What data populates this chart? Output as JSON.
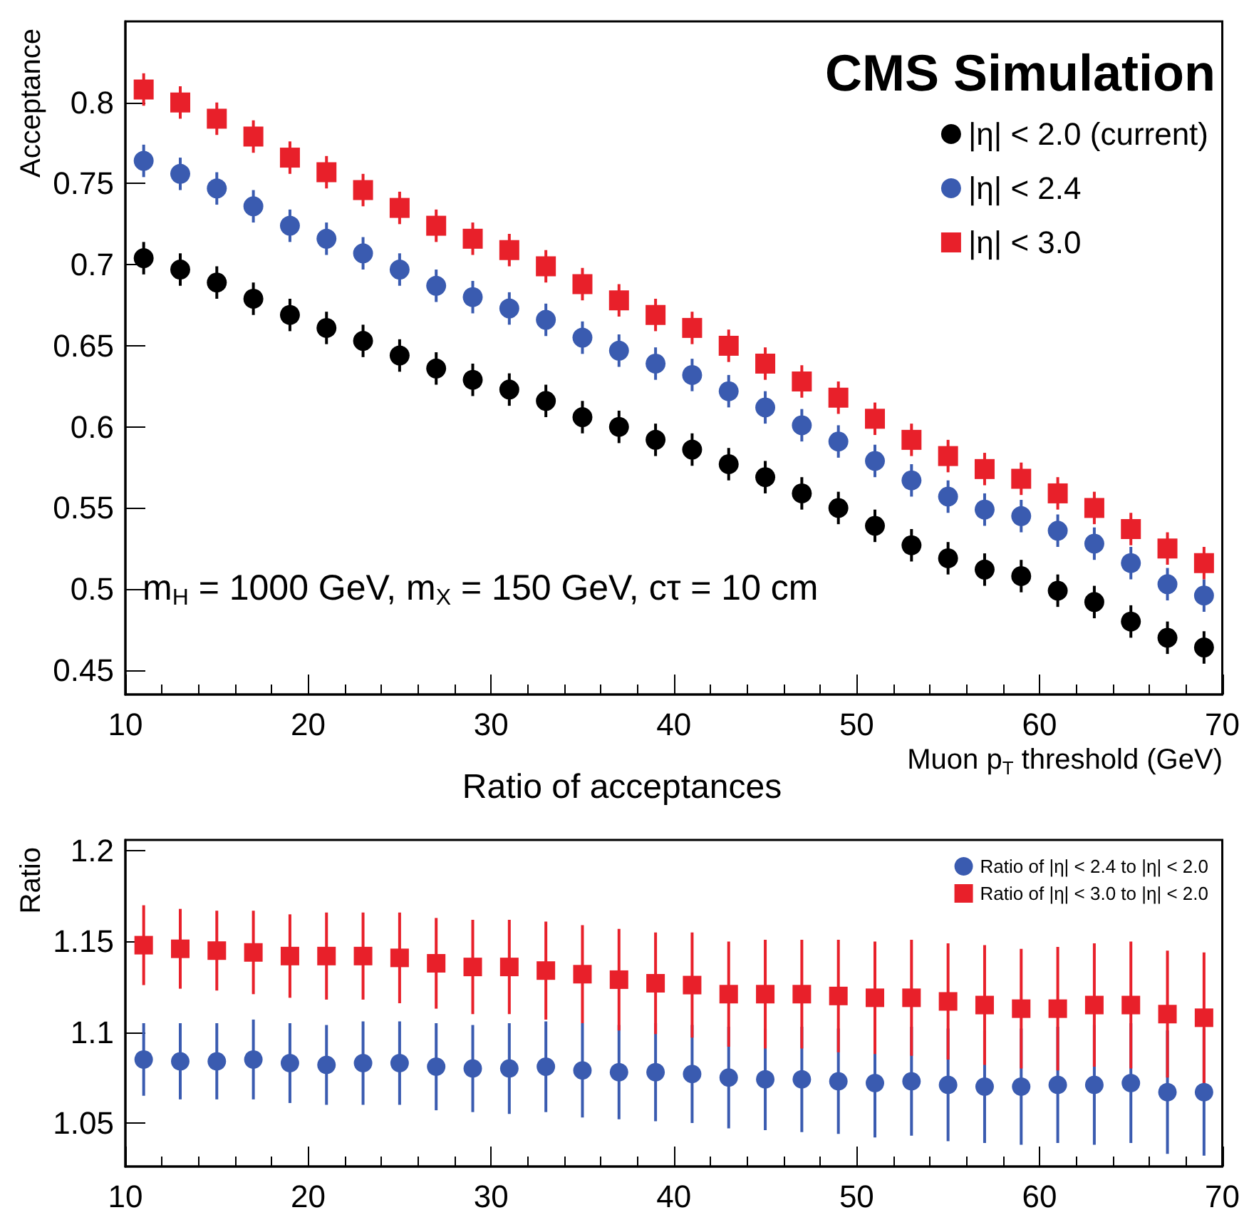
{
  "chart_data": [
    {
      "type": "scatter",
      "xlabel": "Muon p$_{T}$ threshold (GeV)",
      "ylabel": "Acceptance",
      "annotations": [
        "CMS Simulation",
        "m$_{H}$ = 1000 GeV, m$_{X}$ = 150 GeV, cτ = 10 cm"
      ],
      "x": [
        11,
        13,
        15,
        17,
        19,
        21,
        23,
        25,
        27,
        29,
        31,
        33,
        35,
        37,
        39,
        41,
        43,
        45,
        47,
        49,
        51,
        53,
        55,
        57,
        59,
        61,
        63,
        65,
        67,
        69
      ],
      "xlim": [
        10,
        70
      ],
      "xticks": [
        10,
        20,
        30,
        40,
        50,
        60,
        70
      ],
      "ylim": [
        0.435,
        0.85
      ],
      "yticks": [
        0.45,
        0.5,
        0.55,
        0.6,
        0.65,
        0.7,
        0.75,
        0.8
      ],
      "grid": false,
      "legend": "top right",
      "series": [
        {
          "name": "|η| < 2.0 (current)",
          "color": "#000000",
          "marker": "circle",
          "values": [
            0.704,
            0.697,
            0.689,
            0.679,
            0.669,
            0.661,
            0.653,
            0.644,
            0.636,
            0.629,
            0.623,
            0.616,
            0.606,
            0.6,
            0.592,
            0.586,
            0.577,
            0.569,
            0.559,
            0.55,
            0.539,
            0.527,
            0.519,
            0.512,
            0.508,
            0.499,
            0.492,
            0.48,
            0.47,
            0.464
          ],
          "errors": [
            0.01,
            0.01,
            0.01,
            0.01,
            0.01,
            0.01,
            0.01,
            0.01,
            0.01,
            0.01,
            0.01,
            0.01,
            0.01,
            0.01,
            0.01,
            0.01,
            0.01,
            0.01,
            0.01,
            0.01,
            0.01,
            0.01,
            0.01,
            0.01,
            0.01,
            0.01,
            0.01,
            0.01,
            0.01,
            0.01
          ]
        },
        {
          "name": "|η| < 2.4",
          "color": "#3a5bb0",
          "marker": "circle",
          "values": [
            0.764,
            0.756,
            0.747,
            0.736,
            0.724,
            0.716,
            0.707,
            0.697,
            0.687,
            0.68,
            0.673,
            0.666,
            0.655,
            0.647,
            0.639,
            0.632,
            0.622,
            0.612,
            0.601,
            0.591,
            0.579,
            0.567,
            0.557,
            0.549,
            0.545,
            0.536,
            0.528,
            0.516,
            0.503,
            0.496
          ],
          "errors": [
            0.01,
            0.01,
            0.01,
            0.01,
            0.01,
            0.01,
            0.01,
            0.01,
            0.01,
            0.01,
            0.01,
            0.01,
            0.01,
            0.01,
            0.01,
            0.01,
            0.01,
            0.01,
            0.01,
            0.01,
            0.01,
            0.01,
            0.01,
            0.01,
            0.01,
            0.01,
            0.01,
            0.01,
            0.01,
            0.01
          ]
        },
        {
          "name": "|η| < 3.0",
          "color": "#e8202a",
          "marker": "square",
          "values": [
            0.808,
            0.8,
            0.79,
            0.779,
            0.766,
            0.757,
            0.746,
            0.735,
            0.724,
            0.716,
            0.709,
            0.699,
            0.688,
            0.678,
            0.669,
            0.661,
            0.65,
            0.639,
            0.628,
            0.618,
            0.605,
            0.592,
            0.582,
            0.574,
            0.568,
            0.559,
            0.55,
            0.537,
            0.525,
            0.516
          ],
          "errors": [
            0.01,
            0.01,
            0.01,
            0.01,
            0.01,
            0.01,
            0.01,
            0.01,
            0.01,
            0.01,
            0.01,
            0.01,
            0.01,
            0.01,
            0.01,
            0.01,
            0.01,
            0.01,
            0.01,
            0.01,
            0.01,
            0.01,
            0.01,
            0.01,
            0.01,
            0.01,
            0.01,
            0.01,
            0.01,
            0.01
          ]
        }
      ]
    },
    {
      "type": "scatter",
      "title": "Ratio of acceptances",
      "ylabel": "Ratio",
      "x": [
        11,
        13,
        15,
        17,
        19,
        21,
        23,
        25,
        27,
        29,
        31,
        33,
        35,
        37,
        39,
        41,
        43,
        45,
        47,
        49,
        51,
        53,
        55,
        57,
        59,
        61,
        63,
        65,
        67,
        69
      ],
      "xlim": [
        10,
        70
      ],
      "xticks": [
        10,
        20,
        30,
        40,
        50,
        60,
        70
      ],
      "ylim": [
        1.026,
        1.206
      ],
      "yticks": [
        1.05,
        1.1,
        1.15,
        1.2
      ],
      "grid": false,
      "legend": "top right",
      "series": [
        {
          "name": "Ratio of |η| < 2.4 to |η| < 2.0",
          "color": "#3a5bb0",
          "marker": "circle",
          "values": [
            1.085,
            1.084,
            1.084,
            1.085,
            1.083,
            1.082,
            1.083,
            1.083,
            1.081,
            1.08,
            1.08,
            1.081,
            1.079,
            1.078,
            1.078,
            1.077,
            1.075,
            1.074,
            1.074,
            1.073,
            1.072,
            1.073,
            1.071,
            1.07,
            1.07,
            1.071,
            1.071,
            1.072,
            1.067,
            1.067
          ],
          "errors": [
            0.02,
            0.021,
            0.021,
            0.022,
            0.022,
            0.022,
            0.023,
            0.023,
            0.024,
            0.024,
            0.025,
            0.025,
            0.026,
            0.026,
            0.027,
            0.027,
            0.028,
            0.028,
            0.029,
            0.029,
            0.03,
            0.03,
            0.031,
            0.031,
            0.032,
            0.032,
            0.033,
            0.033,
            0.034,
            0.035
          ]
        },
        {
          "name": "Ratio of |η| < 3.0 to |η| < 2.0",
          "color": "#e8202a",
          "marker": "square",
          "values": [
            1.148,
            1.146,
            1.145,
            1.144,
            1.142,
            1.142,
            1.142,
            1.141,
            1.138,
            1.136,
            1.136,
            1.134,
            1.132,
            1.129,
            1.127,
            1.126,
            1.121,
            1.121,
            1.121,
            1.12,
            1.119,
            1.119,
            1.117,
            1.115,
            1.113,
            1.113,
            1.115,
            1.115,
            1.11,
            1.108
          ],
          "errors": [
            0.022,
            0.022,
            0.022,
            0.023,
            0.023,
            0.024,
            0.024,
            0.025,
            0.025,
            0.026,
            0.026,
            0.027,
            0.027,
            0.028,
            0.028,
            0.029,
            0.029,
            0.03,
            0.03,
            0.031,
            0.031,
            0.032,
            0.032,
            0.033,
            0.033,
            0.034,
            0.034,
            0.035,
            0.035,
            0.036
          ]
        }
      ]
    }
  ]
}
